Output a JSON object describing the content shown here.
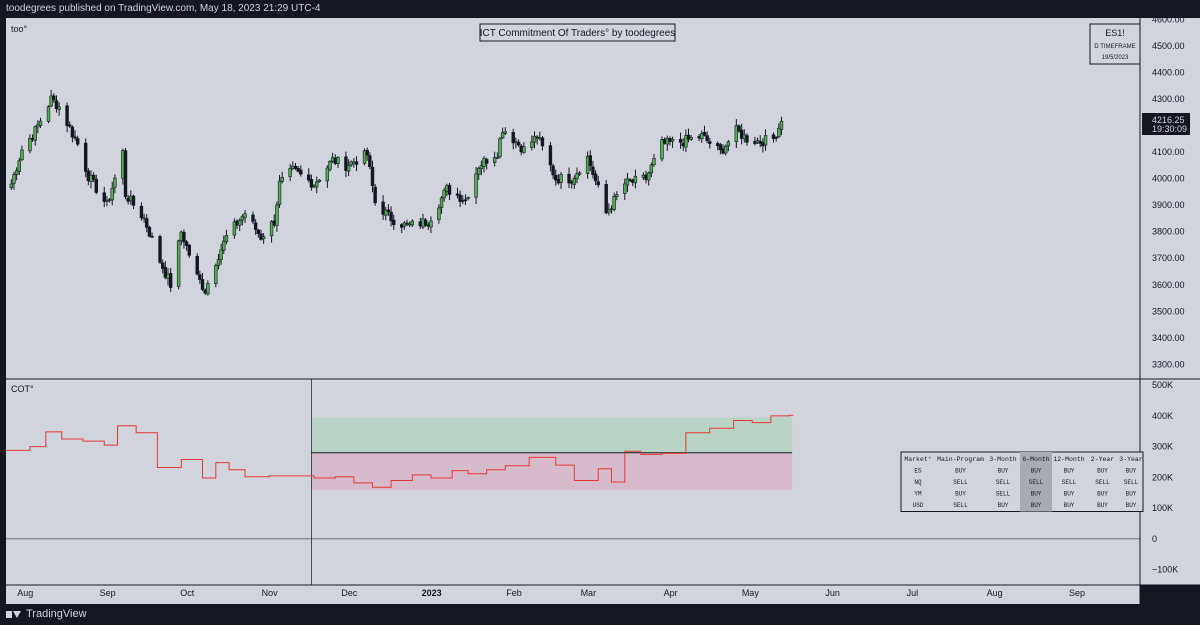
{
  "topbar": {
    "published": "toodegrees published on TradingView.com, May 18, 2023 21:29 UTC-4"
  },
  "footer": {
    "brand": "TradingView"
  },
  "colors": {
    "background": "#d1d4dc",
    "frame": "#131722",
    "bull": "#4caf50",
    "bear": "#131722",
    "cot_line": "#e53935",
    "green_zone": "#b7d4c4",
    "red_zone": "#d6b8c9"
  },
  "price_pane": {
    "legend": "too°",
    "title": "ICT Commitment Of Traders° by toodegrees",
    "info_box": {
      "symbol": "ES1!",
      "timeframe": "D TIMEFRAME",
      "date": "19/5/2023"
    },
    "current_price": "4216.25",
    "countdown": "19:30:09"
  },
  "cot_pane": {
    "legend": "COT°",
    "table": {
      "headers": [
        "Market°",
        "Main-Program",
        "3-Month",
        "6-Month",
        "12-Month",
        "2-Year",
        "3-Year"
      ],
      "rows": [
        [
          "ES",
          "BUY",
          "BUY",
          "BUY",
          "BUY",
          "BUY",
          "BUY"
        ],
        [
          "NQ",
          "SELL",
          "SELL",
          "SELL",
          "SELL",
          "SELL",
          "SELL"
        ],
        [
          "YM",
          "BUY",
          "SELL",
          "BUY",
          "BUY",
          "BUY",
          "BUY"
        ],
        [
          "USD",
          "SELL",
          "BUY",
          "BUY",
          "BUY",
          "BUY",
          "BUY"
        ]
      ]
    }
  },
  "chart_data": [
    {
      "type": "candlestick",
      "x_axis": {
        "tick_labels": [
          "Aug",
          "Sep",
          "Oct",
          "Nov",
          "Dec",
          "2023",
          "Feb",
          "Mar",
          "Apr",
          "May",
          "Jun",
          "Jul",
          "Aug",
          "Sep"
        ],
        "range": [
          "2022-07-30",
          "2023-09-30"
        ]
      },
      "y_axis": {
        "tick_labels": [
          "3300.00",
          "3400.00",
          "3500.00",
          "3600.00",
          "3700.00",
          "3800.00",
          "3900.00",
          "4000.00",
          "4100.00",
          "4200.00",
          "4300.00",
          "4400.00",
          "4500.00",
          "4600.00"
        ],
        "range": [
          3245,
          4605
        ]
      },
      "grid": false,
      "close_path": [
        [
          "2022-08-01",
          3980
        ],
        [
          "2022-08-05",
          4110
        ],
        [
          "2022-08-10",
          4180
        ],
        [
          "2022-08-16",
          4300
        ],
        [
          "2022-08-19",
          4270
        ],
        [
          "2022-08-26",
          4130
        ],
        [
          "2022-08-30",
          4010
        ],
        [
          "2022-09-06",
          3900
        ],
        [
          "2022-09-12",
          4100
        ],
        [
          "2022-09-13",
          3940
        ],
        [
          "2022-09-20",
          3850
        ],
        [
          "2022-09-26",
          3690
        ],
        [
          "2022-09-30",
          3600
        ],
        [
          "2022-10-04",
          3800
        ],
        [
          "2022-10-10",
          3630
        ],
        [
          "2022-10-13",
          3580
        ],
        [
          "2022-10-17",
          3690
        ],
        [
          "2022-10-21",
          3780
        ],
        [
          "2022-10-28",
          3870
        ],
        [
          "2022-11-03",
          3780
        ],
        [
          "2022-11-08",
          3840
        ],
        [
          "2022-11-10",
          3980
        ],
        [
          "2022-11-15",
          4030
        ],
        [
          "2022-11-23",
          3980
        ],
        [
          "2022-11-30",
          4070
        ],
        [
          "2022-12-05",
          4050
        ],
        [
          "2022-12-13",
          4090
        ],
        [
          "2022-12-16",
          3910
        ],
        [
          "2022-12-22",
          3850
        ],
        [
          "2022-12-28",
          3820
        ],
        [
          "2023-01-05",
          3840
        ],
        [
          "2023-01-12",
          3960
        ],
        [
          "2023-01-19",
          3920
        ],
        [
          "2023-01-24",
          4050
        ],
        [
          "2023-01-31",
          4100
        ],
        [
          "2023-02-02",
          4190
        ],
        [
          "2023-02-10",
          4110
        ],
        [
          "2023-02-15",
          4160
        ],
        [
          "2023-02-22",
          4000
        ],
        [
          "2023-02-28",
          4000
        ],
        [
          "2023-03-06",
          4080
        ],
        [
          "2023-03-13",
          3870
        ],
        [
          "2023-03-20",
          3980
        ],
        [
          "2023-03-28",
          4000
        ],
        [
          "2023-04-03",
          4130
        ],
        [
          "2023-04-11",
          4140
        ],
        [
          "2023-04-18",
          4160
        ],
        [
          "2023-04-25",
          4100
        ],
        [
          "2023-05-01",
          4180
        ],
        [
          "2023-05-05",
          4150
        ],
        [
          "2023-05-10",
          4140
        ],
        [
          "2023-05-15",
          4150
        ],
        [
          "2023-05-18",
          4216.25
        ]
      ],
      "last_price": 4216.25
    },
    {
      "type": "line",
      "series": [
        {
          "x": [
            "2022-07-30",
            "2022-08-08",
            "2022-08-14",
            "2022-08-20",
            "2022-08-28",
            "2022-09-05",
            "2022-09-10",
            "2022-09-17",
            "2022-09-25",
            "2022-10-04",
            "2022-10-12",
            "2022-10-17",
            "2022-10-22",
            "2022-10-28",
            "2022-11-06",
            "2022-11-15",
            "2022-11-23",
            "2022-12-01",
            "2022-12-08",
            "2022-12-15",
            "2022-12-22",
            "2022-12-30",
            "2023-01-06",
            "2023-01-14",
            "2023-01-20",
            "2023-01-27",
            "2023-02-03",
            "2023-02-12",
            "2023-02-22",
            "2023-03-01",
            "2023-03-10",
            "2023-03-15",
            "2023-03-20",
            "2023-03-26",
            "2023-04-03",
            "2023-04-12",
            "2023-04-21",
            "2023-04-30",
            "2023-05-07",
            "2023-05-14",
            "2023-05-21"
          ],
          "values": [
            288000,
            300000,
            348000,
            325000,
            318000,
            305000,
            368000,
            345000,
            232000,
            258000,
            198000,
            248000,
            225000,
            202000,
            205000,
            205000,
            198000,
            202000,
            182000,
            168000,
            190000,
            208000,
            198000,
            222000,
            212000,
            225000,
            238000,
            265000,
            240000,
            190000,
            228000,
            185000,
            285000,
            275000,
            278000,
            345000,
            360000,
            385000,
            378000,
            400000,
            402000
          ]
        }
      ],
      "y_axis": {
        "tick_labels": [
          "−100K",
          "0",
          "100K",
          "200K",
          "300K",
          "400K",
          "500K"
        ],
        "range": [
          -150000,
          520000
        ]
      },
      "bands": [
        {
          "from": 280000,
          "to": 395000,
          "start": "2022-11-22",
          "end": "2023-05-22",
          "color": "green_zone"
        },
        {
          "from": 160000,
          "to": 280000,
          "start": "2022-11-22",
          "end": "2023-05-22",
          "color": "red_zone"
        }
      ],
      "reference_lines": [
        {
          "value": 280000,
          "start": "2022-11-22",
          "end": "2023-05-22"
        },
        {
          "value": 0
        }
      ],
      "vertical_line": "2022-11-22"
    }
  ]
}
